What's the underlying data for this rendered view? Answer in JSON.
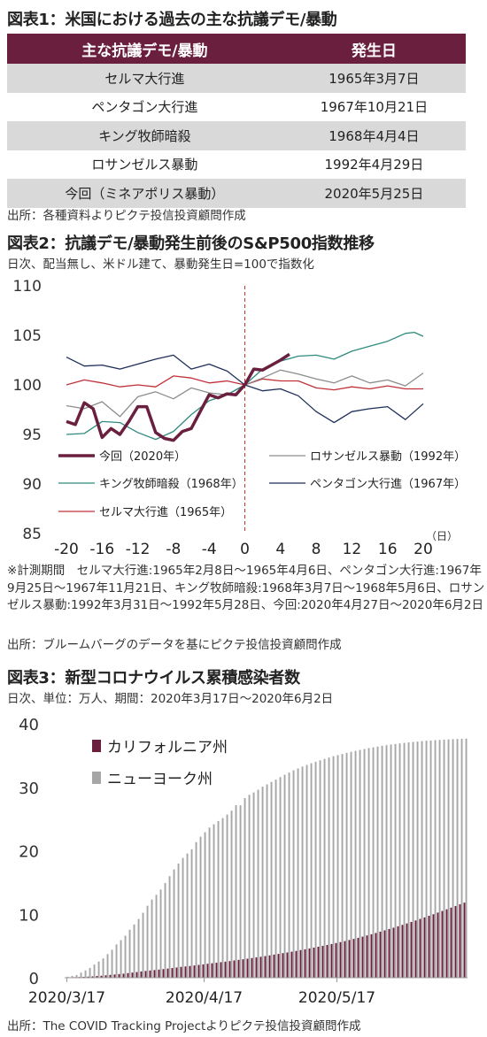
{
  "fig1": {
    "title": "図表1：米国における過去の主な抗議デモ/暴動",
    "headers": [
      "主な抗議デモ/暴動",
      "発生日"
    ],
    "rows": [
      [
        "セルマ大行進",
        "1965年3月7日"
      ],
      [
        "ペンタゴン大行進",
        "1967年10月21日"
      ],
      [
        "キング牧師暗殺",
        "1968年4月4日"
      ],
      [
        "ロサンゼルス暴動",
        "1992年4月29日"
      ],
      [
        "今回（ミネアポリス暴動）",
        "2020年5月25日"
      ]
    ],
    "source": "出所：各種資料よりピクテ投信投資顧問作成"
  },
  "fig2": {
    "title": "図表2：抗議デモ/暴動発生前後のS&P500指数推移",
    "subtitle": "日次、配当無し、米ドル建て、暴動発生日=100で指数化",
    "unit": "（日）",
    "note": "※計測期間　セルマ大行進:1965年2月8日～1965年4月6日、ペンタゴン大行進:1967年9月25日～1967年11月21日、キング牧師暗殺:1968年3月7日～1968年5月6日、ロサンゼルス暴動:1992年3月31日～1992年5月28日、今回:2020年4月27日～2020年6月2日",
    "source": "出所：ブルームバーグのデータを基にピクテ投信投資顧問作成"
  },
  "fig3": {
    "title": "図表3：新型コロナウイルス累積感染者数",
    "subtitle": "日次、単位：万人、期間：2020年3月17日～2020年6月2日",
    "source": "出所：The COVID Tracking Projectよりピクテ投信投資顧問作成"
  },
  "chart_data": [
    {
      "type": "line",
      "ylim": [
        85,
        110
      ],
      "yticks": [
        85,
        90,
        95,
        100,
        105,
        110
      ],
      "xlim": [
        -20,
        20
      ],
      "xticks": [
        -20,
        -16,
        -12,
        -8,
        -4,
        0,
        4,
        8,
        12,
        16,
        20
      ],
      "xtick_labels": [
        "-20",
        "-16",
        "-12",
        "-8",
        "-4",
        "0",
        "4",
        "8",
        "12",
        "16",
        "20"
      ],
      "vline_x": 0,
      "legend": [
        "今回（2020年）",
        "ロサンゼルス暴動（1992年）",
        "キング牧師暗殺（1968年）",
        "ペンタゴン大行進（1967年）",
        "セルマ大行進（1965年）"
      ],
      "series": [
        {
          "name": "今回（2020年）",
          "color": "#6b1f3e",
          "width": 3.5,
          "x": [
            -20,
            -19,
            -18,
            -17,
            -16,
            -15,
            -14,
            -13,
            -12,
            -11,
            -10,
            -9,
            -8,
            -7,
            -6,
            -5,
            -4,
            -3,
            -2,
            -1,
            0,
            1,
            2,
            3,
            4,
            5
          ],
          "y": [
            96.3,
            96.0,
            98.2,
            97.6,
            94.7,
            95.6,
            95.0,
            96.3,
            97.8,
            97.8,
            95.2,
            94.6,
            94.4,
            95.3,
            95.6,
            97.3,
            99.0,
            98.7,
            99.1,
            99.0,
            100.0,
            101.6,
            101.5,
            102.0,
            102.5,
            103.1
          ]
        },
        {
          "name": "ロサンゼルス暴動（1992年）",
          "color": "#8c8c8c",
          "width": 1.3,
          "x": [
            -20,
            -18,
            -16,
            -14,
            -12,
            -10,
            -8,
            -6,
            -4,
            -2,
            0,
            2,
            4,
            6,
            8,
            10,
            12,
            14,
            16,
            18,
            20
          ],
          "y": [
            97.9,
            97.6,
            98.3,
            96.8,
            98.8,
            99.3,
            98.6,
            99.7,
            99.2,
            99.0,
            100.0,
            100.7,
            101.5,
            101.1,
            100.6,
            100.2,
            100.9,
            100.2,
            100.5,
            99.9,
            101.2
          ]
        },
        {
          "name": "キング牧師暗殺（1968年）",
          "color": "#2f8a7e",
          "width": 1.3,
          "x": [
            -20,
            -18,
            -16,
            -14,
            -12,
            -10,
            -8,
            -6,
            -4,
            -2,
            0,
            2,
            4,
            6,
            8,
            10,
            12,
            14,
            16,
            18,
            19,
            20
          ],
          "y": [
            95.0,
            95.1,
            96.3,
            96.2,
            95.2,
            94.5,
            95.3,
            97.0,
            98.4,
            99.0,
            100.0,
            101.6,
            102.4,
            102.9,
            103.0,
            102.6,
            103.4,
            103.9,
            104.4,
            105.2,
            105.3,
            104.9
          ]
        },
        {
          "name": "ペンタゴン大行進（1967年）",
          "color": "#1f2f5a",
          "width": 1.3,
          "x": [
            -20,
            -18,
            -16,
            -14,
            -12,
            -10,
            -8,
            -6,
            -4,
            -2,
            0,
            2,
            4,
            6,
            8,
            10,
            12,
            14,
            16,
            18,
            20
          ],
          "y": [
            102.8,
            101.9,
            102.0,
            101.6,
            102.1,
            102.6,
            103.0,
            101.6,
            102.1,
            101.4,
            100.0,
            99.4,
            99.6,
            98.9,
            97.3,
            96.2,
            97.3,
            97.6,
            97.8,
            96.5,
            98.1
          ]
        },
        {
          "name": "セルマ大行進（1965年）",
          "color": "#c0313a",
          "width": 1.3,
          "x": [
            -20,
            -18,
            -16,
            -14,
            -12,
            -10,
            -8,
            -6,
            -4,
            -2,
            0,
            2,
            4,
            6,
            8,
            10,
            12,
            14,
            16,
            18,
            20
          ],
          "y": [
            100.0,
            100.5,
            100.2,
            99.8,
            100.0,
            99.8,
            100.9,
            100.7,
            100.2,
            100.4,
            100.0,
            100.6,
            100.4,
            100.4,
            99.7,
            99.5,
            99.8,
            99.6,
            99.9,
            99.6,
            99.6
          ]
        }
      ]
    },
    {
      "type": "bar",
      "ylim": [
        0,
        40
      ],
      "yticks": [
        0,
        10,
        20,
        30,
        40
      ],
      "xtick_labels": [
        "2020/3/17",
        "2020/4/17",
        "2020/5/17"
      ],
      "categories_start": "2020/3/17",
      "categories_end": "2020/6/2",
      "legend": [
        "カリフォルニア州",
        "ニューヨーク州"
      ],
      "series": [
        {
          "name": "カリフォルニア州",
          "color": "#6b1f3e",
          "values": [
            0.06,
            0.07,
            0.09,
            0.11,
            0.14,
            0.17,
            0.21,
            0.27,
            0.31,
            0.38,
            0.44,
            0.51,
            0.57,
            0.64,
            0.72,
            0.81,
            0.89,
            0.98,
            1.06,
            1.14,
            1.21,
            1.28,
            1.36,
            1.44,
            1.52,
            1.61,
            1.71,
            1.78,
            1.85,
            1.93,
            2.02,
            2.1,
            2.2,
            2.28,
            2.36,
            2.45,
            2.53,
            2.62,
            2.72,
            2.81,
            2.91,
            3.0,
            3.1,
            3.2,
            3.3,
            3.41,
            3.52,
            3.64,
            3.75,
            3.87,
            3.98,
            4.1,
            4.22,
            4.35,
            4.48,
            4.61,
            4.74,
            4.88,
            5.02,
            5.16,
            5.31,
            5.46,
            5.61,
            5.77,
            5.94,
            6.11,
            6.28,
            6.47,
            6.66,
            6.85,
            7.05,
            7.25,
            7.46,
            7.67,
            7.88,
            8.1,
            8.32,
            8.55,
            8.78,
            9.02,
            9.26,
            9.5,
            9.75,
            10.0,
            10.26,
            10.52,
            10.78,
            11.04,
            11.3,
            11.57,
            11.83
          ]
        },
        {
          "name": "ニューヨーク州",
          "color": "#a6a6a6",
          "values": [
            0.16,
            0.27,
            0.42,
            0.8,
            1.15,
            1.54,
            2.07,
            2.55,
            3.04,
            3.72,
            4.4,
            5.24,
            5.92,
            6.61,
            7.56,
            8.38,
            9.25,
            10.23,
            11.34,
            12.32,
            13.06,
            13.89,
            14.93,
            16.0,
            17.06,
            17.99,
            18.87,
            19.57,
            20.24,
            21.36,
            22.21,
            22.92,
            23.66,
            24.17,
            24.68,
            25.14,
            25.7,
            26.31,
            27.18,
            27.16,
            28.29,
            28.82,
            29.18,
            29.61,
            30.09,
            30.45,
            30.84,
            31.21,
            31.6,
            31.97,
            32.32,
            32.66,
            32.96,
            33.26,
            33.53,
            33.79,
            34.02,
            34.25,
            34.47,
            34.68,
            34.89,
            35.07,
            35.25,
            35.42,
            35.58,
            35.74,
            35.89,
            36.03,
            36.17,
            36.29,
            36.41,
            36.53,
            36.63,
            36.73,
            36.82,
            36.91,
            36.99,
            37.07,
            37.14,
            37.2,
            37.26,
            37.32,
            37.37,
            37.42,
            37.46,
            37.5,
            37.54,
            37.58,
            37.61,
            37.64,
            37.67
          ]
        }
      ]
    }
  ]
}
